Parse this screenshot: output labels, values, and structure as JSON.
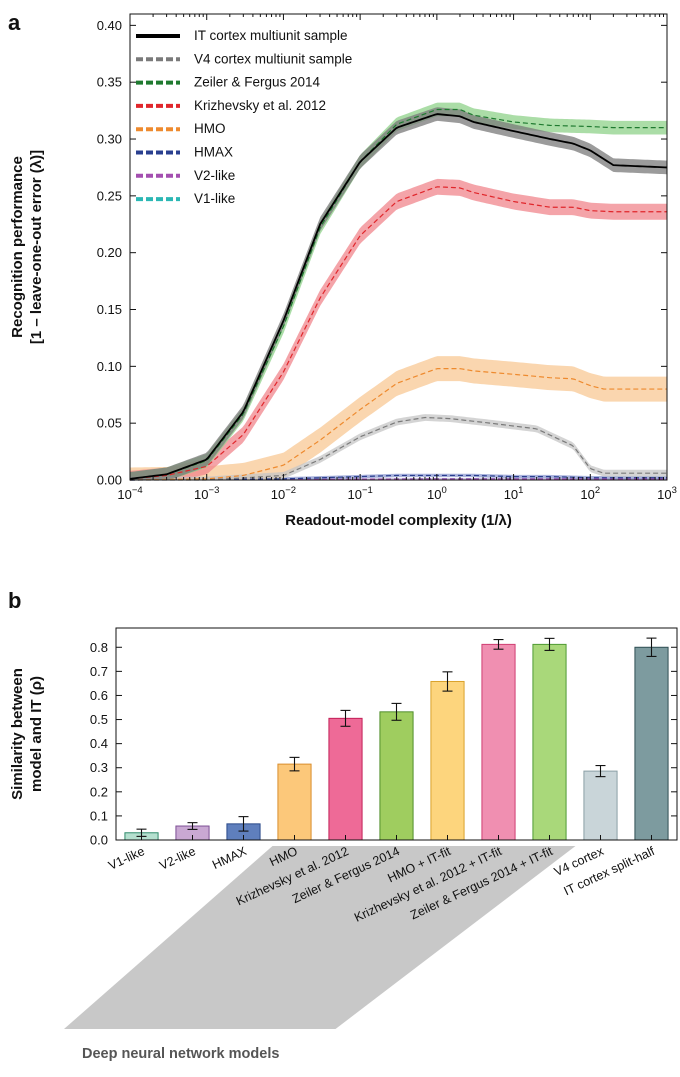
{
  "chart_data": [
    {
      "panel": "a",
      "type": "line",
      "xlabel": "Readout-model complexity (1/λ)",
      "ylabel_line1": "Recognition performance",
      "ylabel_line2": "[1 – leave-one-out error (λ)]",
      "xscale": "log",
      "xlim": [
        0.0001,
        1000
      ],
      "ylim": [
        0,
        0.41
      ],
      "x_ticks": [
        {
          "base": "10",
          "exp": "−4",
          "value": 0.0001
        },
        {
          "base": "10",
          "exp": "−3",
          "value": 0.001
        },
        {
          "base": "10",
          "exp": "−2",
          "value": 0.01
        },
        {
          "base": "10",
          "exp": "−1",
          "value": 0.1
        },
        {
          "base": "10",
          "exp": "0",
          "value": 1
        },
        {
          "base": "10",
          "exp": "1",
          "value": 10
        },
        {
          "base": "10",
          "exp": "2",
          "value": 100
        },
        {
          "base": "10",
          "exp": "3",
          "value": 1000
        }
      ],
      "y_ticks": [
        "0.00",
        "0.05",
        "0.10",
        "0.15",
        "0.20",
        "0.25",
        "0.30",
        "0.35",
        "0.40"
      ],
      "legend_position": "top-left",
      "grid": false,
      "series": [
        {
          "name": "IT cortex multiunit sample",
          "color": "#000000",
          "band": "#7a7a7a",
          "dash": "solid",
          "x": [
            0.0001,
            0.0003,
            0.001,
            0.003,
            0.01,
            0.03,
            0.1,
            0.3,
            1,
            2,
            3,
            10,
            30,
            60,
            100,
            200,
            1000
          ],
          "y": [
            0.001,
            0.005,
            0.018,
            0.06,
            0.14,
            0.225,
            0.28,
            0.31,
            0.322,
            0.32,
            0.315,
            0.307,
            0.3,
            0.296,
            0.29,
            0.277,
            0.275
          ],
          "band_halfwidth": 0.006
        },
        {
          "name": "V4 cortex multiunit sample",
          "color": "#7a7a7a",
          "band": "#c6c6c6",
          "dash": "dashed",
          "x": [
            0.0001,
            0.001,
            0.01,
            0.03,
            0.1,
            0.3,
            0.7,
            1.5,
            5,
            20,
            60,
            100,
            150,
            1000
          ],
          "y": [
            0,
            0,
            0.004,
            0.018,
            0.038,
            0.051,
            0.055,
            0.054,
            0.05,
            0.045,
            0.03,
            0.01,
            0.006,
            0.006
          ],
          "band_halfwidth": 0.003
        },
        {
          "name": "Zeiler & Fergus 2014",
          "color": "#1f7a30",
          "band": "#8fd18a",
          "dash": "dashed",
          "x": [
            0.0001,
            0.0003,
            0.001,
            0.003,
            0.01,
            0.03,
            0.1,
            0.3,
            1,
            2,
            3,
            10,
            30,
            100,
            200,
            1000
          ],
          "y": [
            0.001,
            0.005,
            0.017,
            0.058,
            0.135,
            0.222,
            0.28,
            0.313,
            0.326,
            0.326,
            0.321,
            0.315,
            0.312,
            0.311,
            0.31,
            0.31
          ],
          "band_halfwidth": 0.006
        },
        {
          "name": "Krizhevsky et al. 2012",
          "color": "#e0262b",
          "band": "#f0868c",
          "dash": "dashed",
          "x": [
            0.0001,
            0.0003,
            0.001,
            0.003,
            0.01,
            0.03,
            0.1,
            0.3,
            1,
            2,
            3,
            10,
            30,
            60,
            100,
            200,
            1000
          ],
          "y": [
            0.001,
            0.004,
            0.012,
            0.04,
            0.095,
            0.16,
            0.215,
            0.245,
            0.258,
            0.257,
            0.253,
            0.245,
            0.24,
            0.24,
            0.237,
            0.236,
            0.236
          ],
          "band_halfwidth": 0.007
        },
        {
          "name": "HMO",
          "color": "#ee8a2e",
          "band": "#f8c894",
          "dash": "dashed",
          "x": [
            0.0001,
            0.001,
            0.003,
            0.01,
            0.03,
            0.1,
            0.3,
            1,
            2,
            3,
            10,
            30,
            60,
            100,
            150,
            1000
          ],
          "y": [
            0,
            0.001,
            0.004,
            0.013,
            0.035,
            0.062,
            0.085,
            0.098,
            0.098,
            0.096,
            0.093,
            0.09,
            0.089,
            0.083,
            0.08,
            0.08
          ],
          "band_halfwidth": 0.011
        },
        {
          "name": "HMAX",
          "color": "#2a3f8f",
          "band": "#8e9ad0",
          "dash": "dashed",
          "x": [
            0.0001,
            0.01,
            0.1,
            0.3,
            1,
            3,
            10,
            30,
            100,
            1000
          ],
          "y": [
            0,
            0.001,
            0.003,
            0.004,
            0.004,
            0.004,
            0.003,
            0.003,
            0.002,
            0.002
          ],
          "band_halfwidth": 0.0015
        },
        {
          "name": "V2-like",
          "color": "#a44fb0",
          "band": "#d8b1dc",
          "dash": "dashed",
          "x": [
            0.0001,
            1,
            1000
          ],
          "y": [
            0,
            0.001,
            0.001
          ],
          "band_halfwidth": 0.0007
        },
        {
          "name": "V1-like",
          "color": "#2bb7b4",
          "band": "#9ddddb",
          "dash": "dashed",
          "x": [
            0.0001,
            1,
            1000
          ],
          "y": [
            0,
            0.001,
            0.001
          ],
          "band_halfwidth": 0.0007
        }
      ]
    },
    {
      "panel": "b",
      "type": "bar",
      "ylabel_line1": "Similarity between",
      "ylabel_line2": "model and IT (ρ)",
      "ylim": [
        0,
        0.88
      ],
      "y_ticks": [
        "0.0",
        "0.1",
        "0.2",
        "0.3",
        "0.4",
        "0.5",
        "0.6",
        "0.7",
        "0.8"
      ],
      "categories": [
        "V1-like",
        "V2-like",
        "HMAX",
        "HMO",
        "Krizhevsky et al. 2012",
        "Zeiler & Fergus 2014",
        "HMO + IT-fit",
        "Krizhevsky et al. 2012 + IT-fit",
        "Zeiler & Fergus 2014 + IT-fit",
        "V4 cortex",
        "IT cortex split-half"
      ],
      "values": [
        0.03,
        0.058,
        0.067,
        0.315,
        0.505,
        0.532,
        0.658,
        0.812,
        0.812,
        0.286,
        0.8
      ],
      "errors": [
        0.015,
        0.014,
        0.03,
        0.028,
        0.033,
        0.035,
        0.04,
        0.02,
        0.025,
        0.023,
        0.038
      ],
      "fill_colors": [
        "#b5e0cf",
        "#c9a8d3",
        "#5f7fbd",
        "#fcc87a",
        "#ee6a97",
        "#9fcd5f",
        "#fdd57d",
        "#f08fb1",
        "#a9d87a",
        "#c9d5d9",
        "#7d9b9f"
      ],
      "edge_colors": [
        "#2f8a6b",
        "#7d4f95",
        "#2b4a8a",
        "#d98d2d",
        "#c21f57",
        "#4f8d2a",
        "#d9a22c",
        "#cf3f73",
        "#4f9a34",
        "#8a9fa5",
        "#2f4f54"
      ],
      "group_label": "Deep neural network models"
    }
  ],
  "panel_labels": {
    "a": "a",
    "b": "b"
  }
}
